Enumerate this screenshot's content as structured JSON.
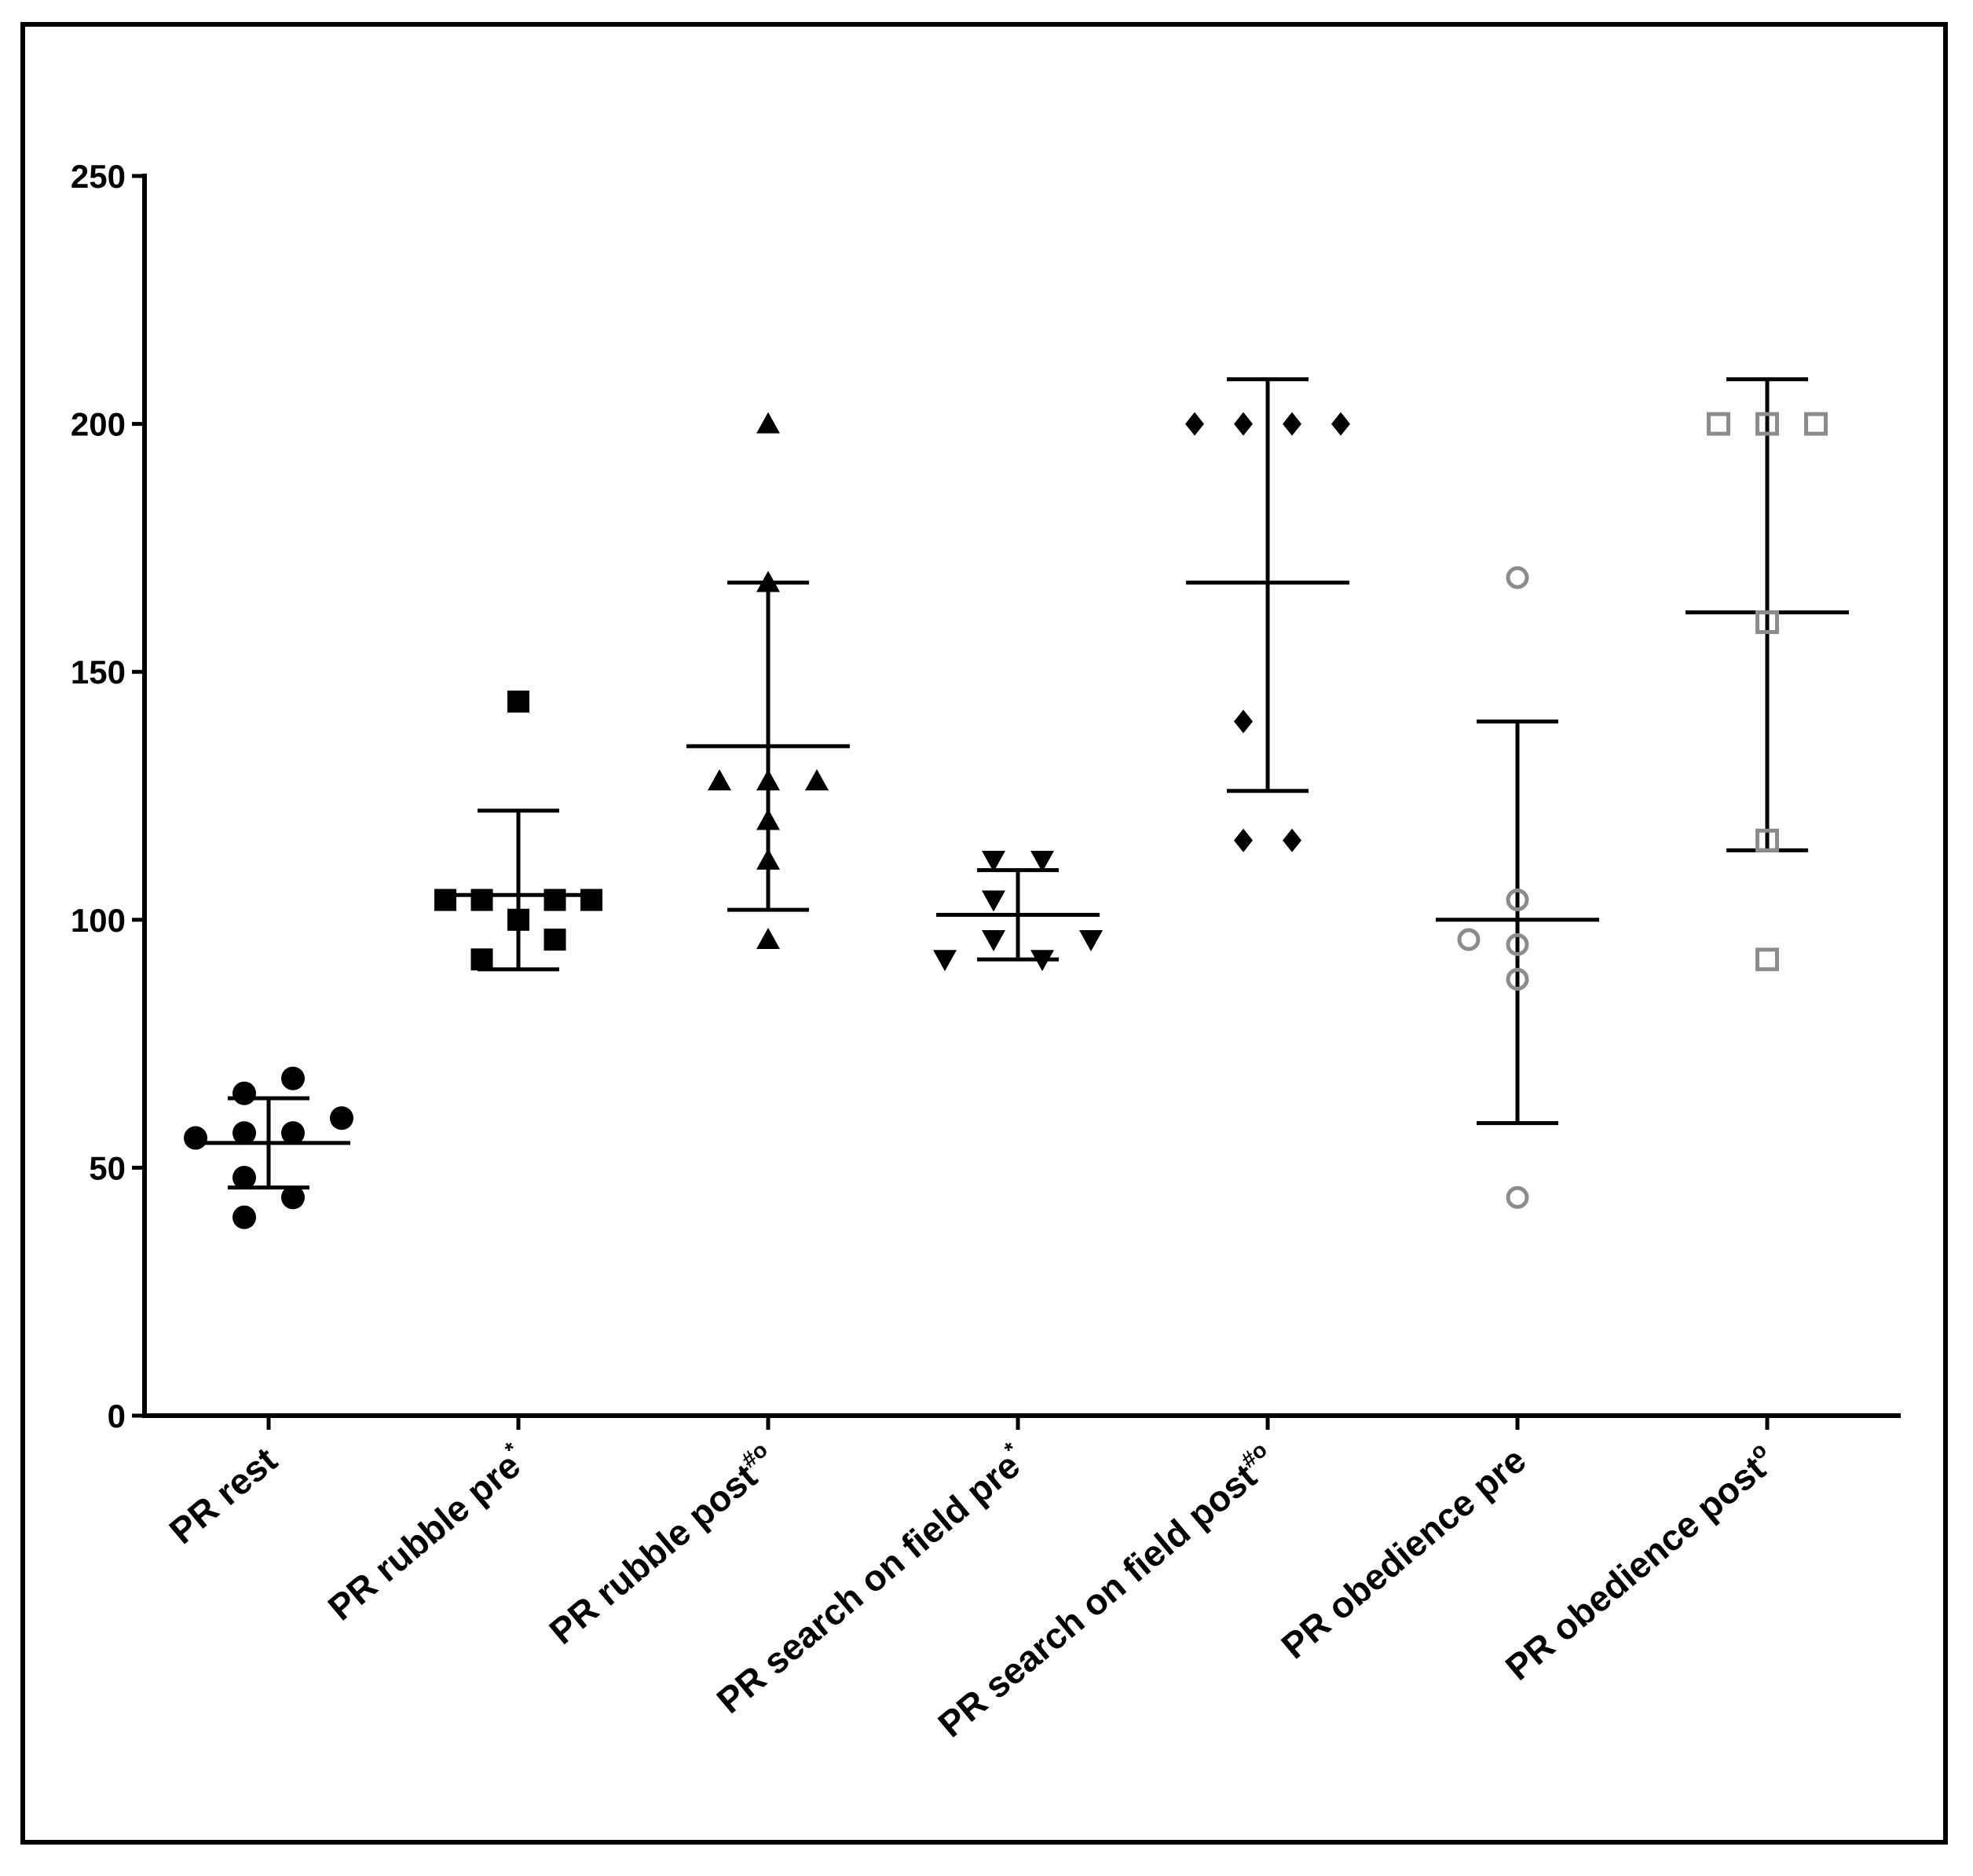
{
  "chart_data": {
    "type": "scatter",
    "title": "",
    "xlabel": "",
    "ylabel": "",
    "ylim": [
      0,
      250
    ],
    "yticks": [
      0,
      50,
      100,
      150,
      200,
      250
    ],
    "grid": false,
    "legend": "none",
    "colors": {
      "black": "#000000",
      "grey": "#8c8c8c"
    },
    "groups": [
      {
        "name": "PR rest",
        "label": "PR rest",
        "sup": "",
        "marker": "circle",
        "filled": true,
        "color": "#000000",
        "points": [
          {
            "y": 68,
            "dx": 1
          },
          {
            "y": 65,
            "dx": -1
          },
          {
            "y": 60,
            "dx": 3
          },
          {
            "y": 57,
            "dx": 1
          },
          {
            "y": 57,
            "dx": -1
          },
          {
            "y": 56,
            "dx": -3
          },
          {
            "y": 48,
            "dx": -1
          },
          {
            "y": 44,
            "dx": 1
          },
          {
            "y": 40,
            "dx": -1
          }
        ],
        "mean": 55,
        "sd_low": 46,
        "sd_high": 64
      },
      {
        "name": "PR rubble pre",
        "label": "PR rubble pre",
        "sup": "*",
        "marker": "square",
        "filled": true,
        "color": "#000000",
        "points": [
          {
            "y": 144,
            "dx": 0
          },
          {
            "y": 104,
            "dx": -3
          },
          {
            "y": 104,
            "dx": -1.5
          },
          {
            "y": 104,
            "dx": 1.5
          },
          {
            "y": 104,
            "dx": 3
          },
          {
            "y": 100,
            "dx": 0
          },
          {
            "y": 96,
            "dx": 1.5
          },
          {
            "y": 92,
            "dx": -1.5
          }
        ],
        "mean": 105,
        "sd_low": 90,
        "sd_high": 122
      },
      {
        "name": "PR rubble post",
        "label": "PR rubble post",
        "sup": "#o",
        "marker": "triangle-up",
        "filled": true,
        "color": "#000000",
        "points": [
          {
            "y": 200,
            "dx": 0
          },
          {
            "y": 168,
            "dx": 0
          },
          {
            "y": 128,
            "dx": -2
          },
          {
            "y": 128,
            "dx": 0
          },
          {
            "y": 128,
            "dx": 2
          },
          {
            "y": 120,
            "dx": 0
          },
          {
            "y": 112,
            "dx": 0
          },
          {
            "y": 96,
            "dx": 0
          }
        ],
        "mean": 135,
        "sd_low": 102,
        "sd_high": 168
      },
      {
        "name": "PR search on field pre",
        "label": "PR search on field pre",
        "sup": "*",
        "marker": "triangle-down",
        "filled": true,
        "color": "#000000",
        "points": [
          {
            "y": 112,
            "dx": -1
          },
          {
            "y": 112,
            "dx": 1
          },
          {
            "y": 104,
            "dx": -1
          },
          {
            "y": 96,
            "dx": -1
          },
          {
            "y": 96,
            "dx": 3
          },
          {
            "y": 92,
            "dx": -3
          },
          {
            "y": 92,
            "dx": 1
          }
        ],
        "mean": 101,
        "sd_low": 92,
        "sd_high": 110
      },
      {
        "name": "PR search on field post",
        "label": "PR search on field post",
        "sup": "#o",
        "marker": "diamond",
        "filled": true,
        "color": "#000000",
        "points": [
          {
            "y": 200,
            "dx": -3
          },
          {
            "y": 200,
            "dx": -1
          },
          {
            "y": 200,
            "dx": 1
          },
          {
            "y": 200,
            "dx": 3
          },
          {
            "y": 140,
            "dx": -1
          },
          {
            "y": 116,
            "dx": -1
          },
          {
            "y": 116,
            "dx": 1
          }
        ],
        "mean": 168,
        "sd_low": 126,
        "sd_high": 209
      },
      {
        "name": "PR obedience pre",
        "label": "PR obedience pre",
        "sup": "",
        "marker": "circle",
        "filled": false,
        "color": "#8c8c8c",
        "points": [
          {
            "y": 169,
            "dx": 0
          },
          {
            "y": 104,
            "dx": 0
          },
          {
            "y": 96,
            "dx": -2
          },
          {
            "y": 95,
            "dx": 0
          },
          {
            "y": 88,
            "dx": 0
          },
          {
            "y": 44,
            "dx": 0
          }
        ],
        "mean": 100,
        "sd_low": 59,
        "sd_high": 140
      },
      {
        "name": "PR obedience post",
        "label": "PR obedience post",
        "sup": "o",
        "marker": "square",
        "filled": false,
        "color": "#8c8c8c",
        "points": [
          {
            "y": 200,
            "dx": -2
          },
          {
            "y": 200,
            "dx": 0
          },
          {
            "y": 200,
            "dx": 2
          },
          {
            "y": 160,
            "dx": 0
          },
          {
            "y": 116,
            "dx": 0
          },
          {
            "y": 92,
            "dx": 0
          }
        ],
        "mean": 162,
        "sd_low": 114,
        "sd_high": 209
      }
    ]
  }
}
